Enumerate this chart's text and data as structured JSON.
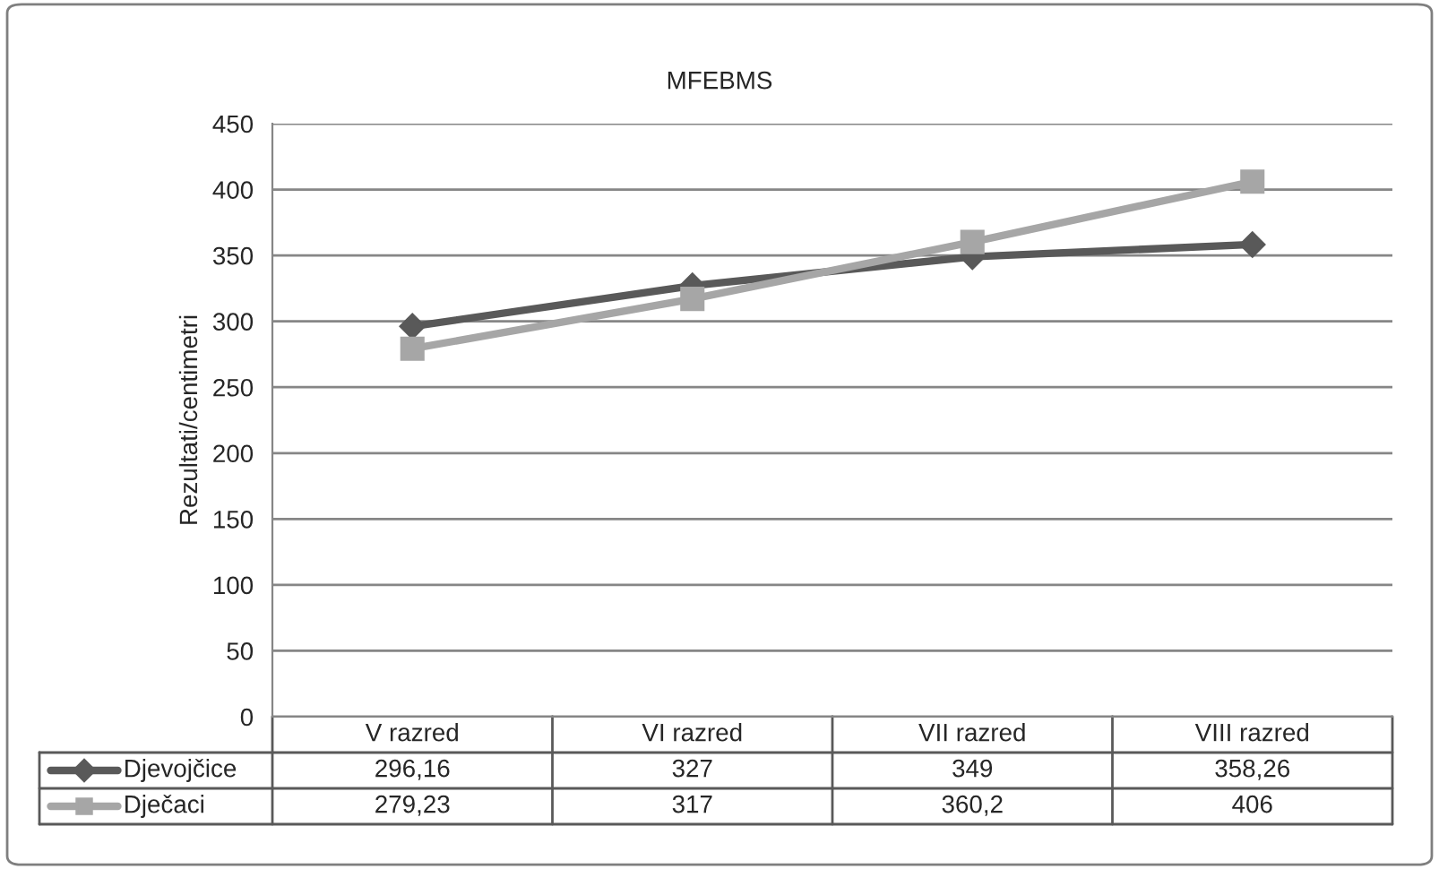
{
  "chart_data": {
    "type": "line",
    "title": "MFEBMS",
    "ylabel": "Rezultati/centimetri",
    "categories": [
      "V razred",
      "VI razred",
      "VII razred",
      "VIII razred"
    ],
    "series": [
      {
        "name": "Djevojčice",
        "color": "#595959",
        "marker": "diamond",
        "values": [
          296.16,
          327,
          349,
          358.26
        ],
        "value_labels": [
          "296,16",
          "327",
          "349",
          "358,26"
        ]
      },
      {
        "name": "Dječaci",
        "color": "#a6a6a6",
        "marker": "square",
        "values": [
          279.23,
          317,
          360.2,
          406
        ],
        "value_labels": [
          "279,23",
          "317",
          "360,2",
          "406"
        ]
      }
    ],
    "ylim": [
      0,
      450
    ],
    "yticks": [
      0,
      50,
      100,
      150,
      200,
      250,
      300,
      350,
      400,
      450
    ],
    "grid": "y",
    "legend": "bottom",
    "line_style": "solid"
  }
}
